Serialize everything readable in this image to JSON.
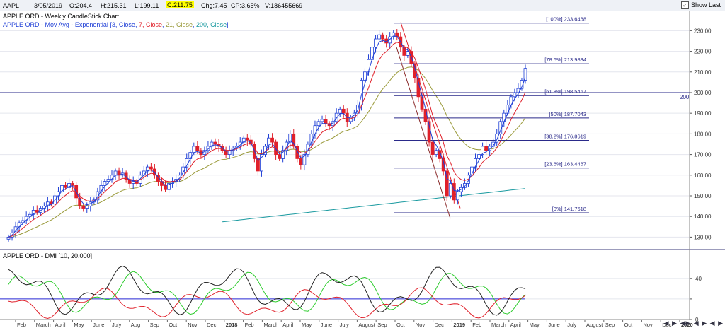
{
  "toolbar": {
    "symbol": "AAPL",
    "date": "3/05/2019",
    "open": "O:204.4",
    "high": "H:215.31",
    "low": "L:199.11",
    "close": "C:211.75",
    "change": "Chg:7.45",
    "change_pct": "CP:3.65%",
    "volume": "V:186455669",
    "show_last_label": "Show Last",
    "show_last_checked": "✓"
  },
  "price_panel": {
    "title": "APPLE ORD - Weekly CandleStick Chart",
    "subtitle_prefix": "APPLE ORD - Mov Avg - Exponential [",
    "ma_params": [
      {
        "text": "3, Close",
        "color": "#1f3fd6"
      },
      {
        "text": "7, Close",
        "color": "#e0202a"
      },
      {
        "text": "21, Close",
        "color": "#9a9a3a"
      },
      {
        "text": "200, Close",
        "color": "#1a9aa0"
      }
    ],
    "subtitle_suffix": "]",
    "horizontal_line_label": "200",
    "fib_levels": [
      {
        "label": "[100%] 233.6468",
        "value": 233.6468
      },
      {
        "label": "[78.6%] 213.9834",
        "value": 213.9834
      },
      {
        "label": "[61.8%] 198.5467",
        "value": 198.5467
      },
      {
        "label": "[50%] 187.7043",
        "value": 187.7043
      },
      {
        "label": "[38.2%] 176.8619",
        "value": 176.8619
      },
      {
        "label": "[23.6%] 163.4467",
        "value": 163.4467
      },
      {
        "label": "[0%] 141.7618",
        "value": 141.7618
      }
    ]
  },
  "dmi_panel": {
    "title": "APPLE ORD - DMI [10, 20.000]"
  },
  "colors": {
    "up_candle": "#1f3fd6",
    "down_candle": "#e0202a",
    "ema3": "#1f3fd6",
    "ema7": "#e0202a",
    "ema21": "#9a9a3a",
    "ema200": "#1a9aa0",
    "fib": "#2a2a8a",
    "plus_di": "#2ecc2e",
    "minus_di": "#e0202a",
    "adx": "#222222",
    "threshold": "#2b2bd6"
  },
  "chart_data": [
    {
      "type": "candlestick",
      "title": "APPLE ORD - Weekly CandleStick Chart",
      "y_ticks": [
        130,
        140,
        150,
        160,
        170,
        180,
        190,
        200,
        210,
        220,
        230
      ],
      "y_tick_labels": [
        "130.00",
        "140.00",
        "150.00",
        "160.00",
        "170.00",
        "180.00",
        "190.00",
        "200.00",
        "210.00",
        "220.00",
        "230.00"
      ],
      "ylim": [
        125,
        238
      ],
      "x_labels": [
        "Feb",
        "March",
        "April",
        "May",
        "June",
        "July",
        "Aug",
        "Sep",
        "Oct",
        "Nov",
        "Dec",
        "2018",
        "Feb",
        "March",
        "April",
        "May",
        "June",
        "July",
        "August",
        "Sep",
        "Oct",
        "Nov",
        "Dec",
        "2019",
        "Feb",
        "March",
        "April",
        "May",
        "June",
        "July",
        "August",
        "Sep",
        "Oct",
        "Nov",
        "Dec",
        "2020"
      ],
      "horizontal_line": 200,
      "candle_closes": [
        130,
        132,
        135,
        137,
        138,
        140,
        141,
        143,
        142,
        144,
        145,
        147,
        146,
        150,
        152,
        155,
        154,
        156,
        155,
        149,
        145,
        144,
        145,
        147,
        148,
        152,
        155,
        157,
        158,
        160,
        162,
        160,
        161,
        158,
        156,
        157,
        156,
        160,
        162,
        164,
        163,
        160,
        157,
        155,
        153,
        156,
        157,
        158,
        160,
        164,
        168,
        171,
        174,
        172,
        170,
        172,
        174,
        176,
        175,
        174,
        172,
        170,
        172,
        173,
        174,
        176,
        178,
        177,
        175,
        168,
        162,
        170,
        174,
        178,
        176,
        170,
        168,
        172,
        176,
        180,
        174,
        168,
        165,
        170,
        175,
        180,
        184,
        186,
        187,
        185,
        184,
        186,
        190,
        192,
        190,
        186,
        188,
        190,
        194,
        206,
        210,
        216,
        222,
        226,
        228,
        226,
        224,
        227,
        229,
        227,
        222,
        218,
        220,
        214,
        207,
        198,
        192,
        186,
        176,
        170,
        172,
        168,
        162,
        150,
        156,
        148,
        152,
        154,
        156,
        160,
        164,
        168,
        170,
        174,
        172,
        174,
        176,
        180,
        186,
        190,
        194,
        198,
        200,
        202,
        206,
        211.75
      ],
      "fib_levels": [
        233.6468,
        213.9834,
        198.5467,
        187.7043,
        176.8619,
        163.4467,
        141.7618
      ]
    },
    {
      "type": "line",
      "title": "APPLE ORD - DMI [10, 20.000]",
      "y_ticks": [
        0,
        20,
        40
      ],
      "y_tick_labels": [
        "0",
        "",
        "40"
      ],
      "ylim": [
        0,
        55
      ],
      "threshold": 20,
      "series": []
    }
  ]
}
